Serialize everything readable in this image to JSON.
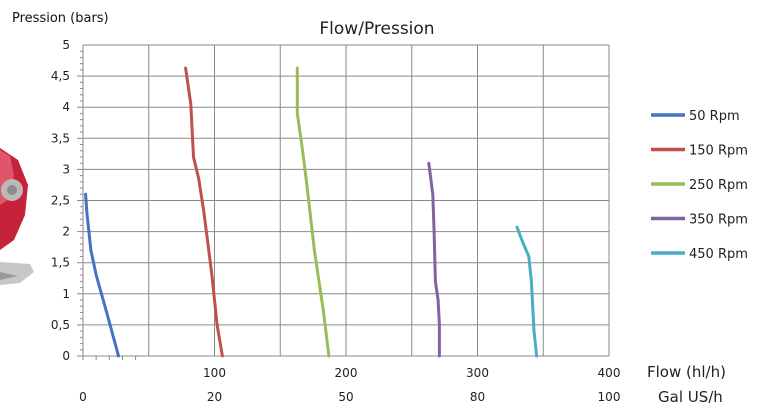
{
  "chart_data": {
    "type": "line",
    "title": "Flow/Pression",
    "ylabel": "Pression (bars)",
    "xlabel": "Flow (hl/h)",
    "x2label": "Gal US/h",
    "ylim": [
      0,
      5
    ],
    "xlim": [
      0,
      400
    ],
    "y_ticks": [
      "0",
      "0,5",
      "1",
      "1,5",
      "2",
      "2,5",
      "3",
      "3,5",
      "4",
      "4,5",
      "5"
    ],
    "x_ticks": [
      {
        "value": 100,
        "label": "100"
      },
      {
        "value": 200,
        "label": "200"
      },
      {
        "value": 300,
        "label": "300"
      },
      {
        "value": 400,
        "label": "400"
      }
    ],
    "x2_ticks": [
      {
        "value": 0,
        "label": "0"
      },
      {
        "value": 100,
        "label": "20"
      },
      {
        "value": 200,
        "label": "50"
      },
      {
        "value": 300,
        "label": "80"
      },
      {
        "value": 400,
        "label": "100"
      }
    ],
    "grid": true,
    "legend_position": "right",
    "series": [
      {
        "name": "50 Rpm",
        "color": "#4472C4",
        "points": [
          [
            2,
            2.6
          ],
          [
            3,
            2.3
          ],
          [
            6,
            1.7
          ],
          [
            10,
            1.3
          ],
          [
            18,
            0.7
          ],
          [
            27,
            0
          ]
        ]
      },
      {
        "name": "150 Rpm",
        "color": "#C0504D",
        "points": [
          [
            78,
            4.63
          ],
          [
            82,
            4.05
          ],
          [
            84,
            3.2
          ],
          [
            88,
            2.85
          ],
          [
            92,
            2.3
          ],
          [
            98,
            1.3
          ],
          [
            102,
            0.5
          ],
          [
            106,
            0
          ]
        ]
      },
      {
        "name": "250 Rpm",
        "color": "#9BBB59",
        "points": [
          [
            163,
            4.63
          ],
          [
            163,
            3.9
          ],
          [
            167,
            3.3
          ],
          [
            170,
            2.8
          ],
          [
            176,
            1.7
          ],
          [
            183,
            0.7
          ],
          [
            187,
            0
          ]
        ]
      },
      {
        "name": "350 Rpm",
        "color": "#8064A2",
        "points": [
          [
            263,
            3.1
          ],
          [
            266,
            2.6
          ],
          [
            267,
            2.0
          ],
          [
            268,
            1.2
          ],
          [
            270,
            0.9
          ],
          [
            271,
            0.5
          ],
          [
            271,
            0
          ]
        ]
      },
      {
        "name": "450 Rpm",
        "color": "#4BACC6",
        "points": [
          [
            330,
            2.07
          ],
          [
            334,
            1.85
          ],
          [
            339,
            1.6
          ],
          [
            341,
            1.2
          ],
          [
            342,
            0.8
          ],
          [
            343,
            0.4
          ],
          [
            345,
            0
          ]
        ]
      }
    ]
  }
}
